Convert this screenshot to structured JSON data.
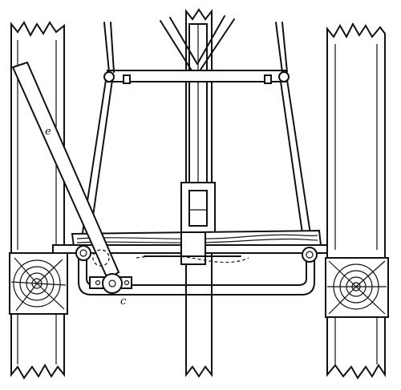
{
  "figure": {
    "labels": {
      "lever": "e",
      "pivot": "c"
    }
  }
}
